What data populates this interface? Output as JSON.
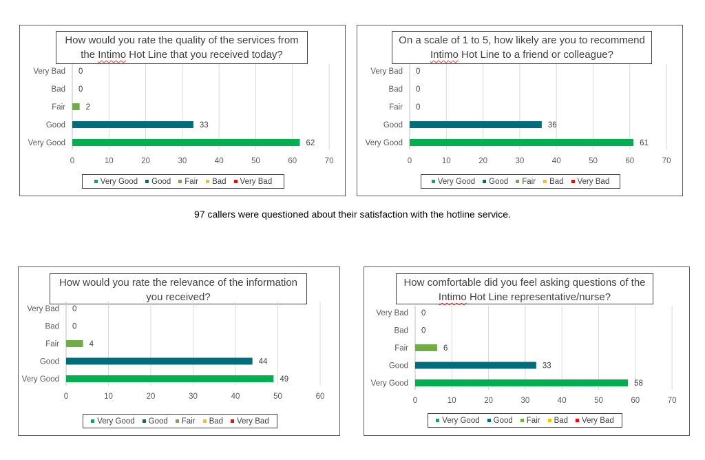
{
  "caption": "97 callers were questioned about their satisfaction with the hotline service.",
  "legend": [
    {
      "label": "Very Good",
      "color": "#00b050"
    },
    {
      "label": "Good",
      "color": "#006d7a"
    },
    {
      "label": "Fair",
      "color": "#70ad47"
    },
    {
      "label": "Bad",
      "color": "#ffc000"
    },
    {
      "label": "Very Bad",
      "color": "#ff0000"
    }
  ],
  "chart_data": [
    {
      "type": "bar",
      "orientation": "horizontal",
      "title_parts": [
        {
          "text": "How would you rate the quality of the services from the "
        },
        {
          "text": "Intimo",
          "underline": true
        },
        {
          "text": " Hot Line that you received today?"
        }
      ],
      "categories": [
        "Very Bad",
        "Bad",
        "Fair",
        "Good",
        "Very Good"
      ],
      "values": [
        0,
        0,
        2,
        33,
        62
      ],
      "colors": [
        "#ff0000",
        "#ffc000",
        "#70ad47",
        "#006d7a",
        "#00b050"
      ],
      "xlim": [
        0,
        70
      ],
      "xticks": [
        0,
        10,
        20,
        30,
        40,
        50,
        60,
        70
      ],
      "grid": true,
      "legend_position": "bottom"
    },
    {
      "type": "bar",
      "orientation": "horizontal",
      "title_parts": [
        {
          "text": "On a scale of 1 to 5, how likely are you to recommend "
        },
        {
          "text": "Intimo",
          "underline": true
        },
        {
          "text": " Hot Line to a friend or colleague?"
        }
      ],
      "categories": [
        "Very Bad",
        "Bad",
        "Fair",
        "Good",
        "Very Good"
      ],
      "values": [
        0,
        0,
        0,
        36,
        61
      ],
      "colors": [
        "#ff0000",
        "#ffc000",
        "#70ad47",
        "#006d7a",
        "#00b050"
      ],
      "xlim": [
        0,
        70
      ],
      "xticks": [
        0,
        10,
        20,
        30,
        40,
        50,
        60,
        70
      ],
      "grid": true,
      "legend_position": "bottom"
    },
    {
      "type": "bar",
      "orientation": "horizontal",
      "title_parts": [
        {
          "text": "How would you rate the relevance of the information you received?"
        }
      ],
      "categories": [
        "Very Bad",
        "Bad",
        "Fair",
        "Good",
        "Very Good"
      ],
      "values": [
        0,
        0,
        4,
        44,
        49
      ],
      "colors": [
        "#ff0000",
        "#ffc000",
        "#70ad47",
        "#006d7a",
        "#00b050"
      ],
      "xlim": [
        0,
        60
      ],
      "xticks": [
        0,
        10,
        20,
        30,
        40,
        50,
        60
      ],
      "grid": true,
      "legend_position": "bottom"
    },
    {
      "type": "bar",
      "orientation": "horizontal",
      "title_parts": [
        {
          "text": "How comfortable did you feel asking questions of the "
        },
        {
          "text": "Intimo",
          "underline": true
        },
        {
          "text": " Hot Line representative/nurse?"
        }
      ],
      "categories": [
        "Very Bad",
        "Bad",
        "Fair",
        "Good",
        "Very Good"
      ],
      "values": [
        0,
        0,
        6,
        33,
        58
      ],
      "colors": [
        "#ff0000",
        "#ffc000",
        "#70ad47",
        "#006d7a",
        "#00b050"
      ],
      "xlim": [
        0,
        70
      ],
      "xticks": [
        0,
        10,
        20,
        30,
        40,
        50,
        60,
        70
      ],
      "grid": true,
      "legend_position": "bottom"
    }
  ]
}
